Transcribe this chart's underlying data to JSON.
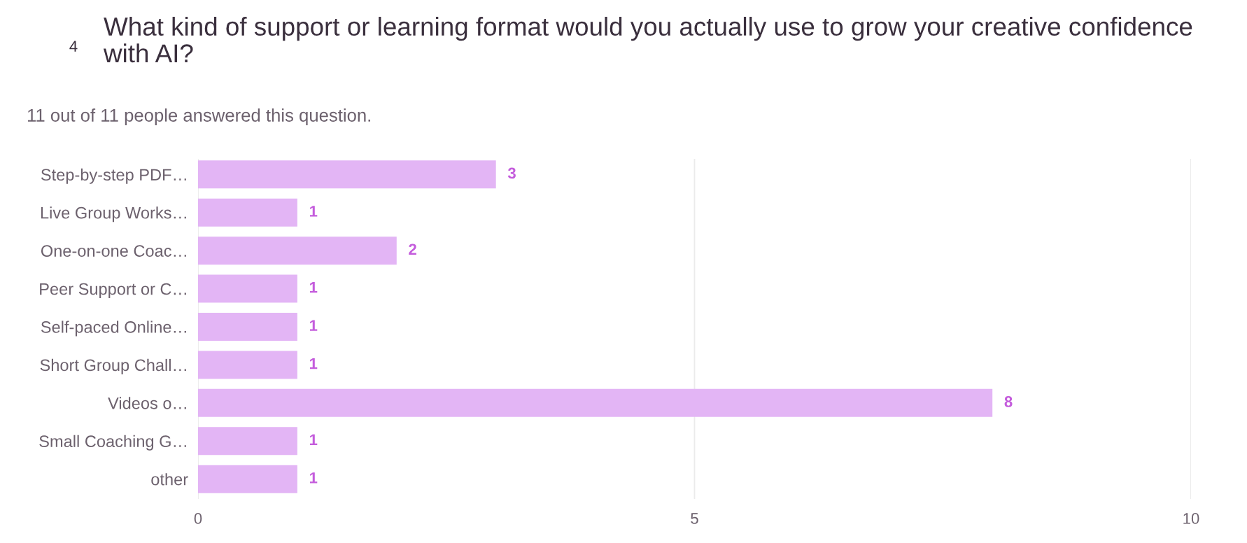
{
  "chart_data": {
    "type": "bar",
    "orientation": "horizontal",
    "title": "What kind of support or learning format would you actually use to grow your creative confidence with AI?",
    "subtitle": "11 out of 11 people answered this question.",
    "annotations": [
      "4"
    ],
    "categories": [
      "Step-by-step PDF…",
      "Live Group Works…",
      "One-on-one Coac…",
      "Peer Support or C…",
      "Self-paced Online…",
      "Short Group Chall…",
      "Videos o…",
      "Small Coaching G…",
      "other"
    ],
    "values": [
      3,
      1,
      2,
      1,
      1,
      1,
      8,
      1,
      1
    ],
    "color": "#e3b5f5",
    "xlim": [
      0,
      10
    ],
    "xticks": [
      0,
      5,
      10
    ],
    "grid": "x",
    "data_labels": true
  }
}
